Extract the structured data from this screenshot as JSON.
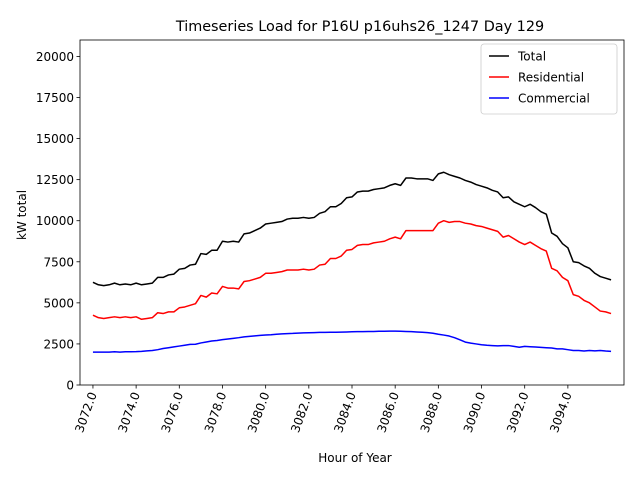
{
  "chart_data": {
    "type": "line",
    "title": "Timeseries Load for P16U p16uhs26_1247  Day 129",
    "xlabel": "Hour of Year",
    "ylabel": "kW total",
    "xlim": [
      3071.4,
      3096.6
    ],
    "ylim": [
      0,
      21000
    ],
    "x_start": 3072.0,
    "x_step": 0.25,
    "xticks": [
      3072,
      3074,
      3076,
      3078,
      3080,
      3082,
      3084,
      3086,
      3088,
      3090,
      3092,
      3094
    ],
    "xtick_labels": [
      "3072.0",
      "3074.0",
      "3076.0",
      "3078.0",
      "3080.0",
      "3082.0",
      "3084.0",
      "3086.0",
      "3088.0",
      "3090.0",
      "3092.0",
      "3094.0"
    ],
    "yticks": [
      0,
      2500,
      5000,
      7500,
      10000,
      12500,
      15000,
      17500,
      20000
    ],
    "ytick_labels": [
      "0",
      "2500",
      "5000",
      "7500",
      "10000",
      "12500",
      "15000",
      "17500",
      "20000"
    ],
    "legend_position": "top-right",
    "series": [
      {
        "name": "Total",
        "color": "#000000",
        "values": [
          6250,
          6100,
          6050,
          6100,
          6200,
          6100,
          6150,
          6100,
          6200,
          6100,
          6150,
          6200,
          6550,
          6550,
          6700,
          6750,
          7050,
          7100,
          7300,
          7350,
          8000,
          7950,
          8200,
          8200,
          8750,
          8700,
          8750,
          8700,
          9200,
          9250,
          9400,
          9550,
          9800,
          9850,
          9900,
          9950,
          10100,
          10150,
          10150,
          10200,
          10150,
          10200,
          10450,
          10550,
          10850,
          10850,
          11050,
          11400,
          11450,
          11750,
          11800,
          11800,
          11900,
          11950,
          12000,
          12150,
          12250,
          12150,
          12600,
          12600,
          12550,
          12550,
          12550,
          12450,
          12850,
          12950,
          12800,
          12700,
          12600,
          12450,
          12350,
          12200,
          12100,
          12000,
          11850,
          11750,
          11400,
          11450,
          11150,
          11000,
          10850,
          11000,
          10800,
          10550,
          10400,
          9250,
          9050,
          8600,
          8350,
          7500,
          7450,
          7250,
          7100,
          6800,
          6600,
          6500,
          6400
        ]
      },
      {
        "name": "Residential",
        "color": "#ff0000",
        "values": [
          4250,
          4100,
          4050,
          4100,
          4150,
          4100,
          4150,
          4100,
          4150,
          4000,
          4050,
          4100,
          4400,
          4350,
          4450,
          4450,
          4700,
          4750,
          4850,
          4950,
          5450,
          5350,
          5600,
          5550,
          6000,
          5900,
          5900,
          5850,
          6300,
          6350,
          6450,
          6550,
          6800,
          6800,
          6850,
          6900,
          7000,
          7000,
          7000,
          7050,
          7000,
          7050,
          7300,
          7350,
          7700,
          7700,
          7850,
          8200,
          8250,
          8500,
          8550,
          8550,
          8650,
          8700,
          8750,
          8900,
          9000,
          8900,
          9400,
          9400,
          9400,
          9400,
          9400,
          9400,
          9850,
          10000,
          9900,
          9950,
          9950,
          9850,
          9800,
          9700,
          9650,
          9550,
          9450,
          9350,
          9000,
          9100,
          8900,
          8700,
          8550,
          8700,
          8500,
          8300,
          8150,
          7100,
          6950,
          6550,
          6350,
          5500,
          5400,
          5150,
          5000,
          4750,
          4500,
          4450,
          4350
        ]
      },
      {
        "name": "Commercial",
        "color": "#0000ff",
        "values": [
          2000,
          2000,
          2000,
          2000,
          2020,
          2000,
          2020,
          2020,
          2030,
          2050,
          2080,
          2100,
          2150,
          2220,
          2270,
          2320,
          2370,
          2420,
          2470,
          2480,
          2560,
          2620,
          2680,
          2710,
          2760,
          2800,
          2840,
          2880,
          2930,
          2960,
          2990,
          3020,
          3040,
          3060,
          3090,
          3110,
          3130,
          3140,
          3160,
          3170,
          3180,
          3190,
          3200,
          3200,
          3210,
          3210,
          3220,
          3230,
          3240,
          3250,
          3250,
          3260,
          3260,
          3270,
          3270,
          3280,
          3280,
          3270,
          3260,
          3250,
          3230,
          3210,
          3190,
          3150,
          3090,
          3040,
          2980,
          2880,
          2750,
          2610,
          2550,
          2500,
          2450,
          2420,
          2400,
          2380,
          2400,
          2400,
          2350,
          2300,
          2350,
          2330,
          2310,
          2290,
          2270,
          2250,
          2200,
          2200,
          2150,
          2100,
          2100,
          2070,
          2100,
          2080,
          2100,
          2070,
          2050
        ]
      }
    ]
  }
}
